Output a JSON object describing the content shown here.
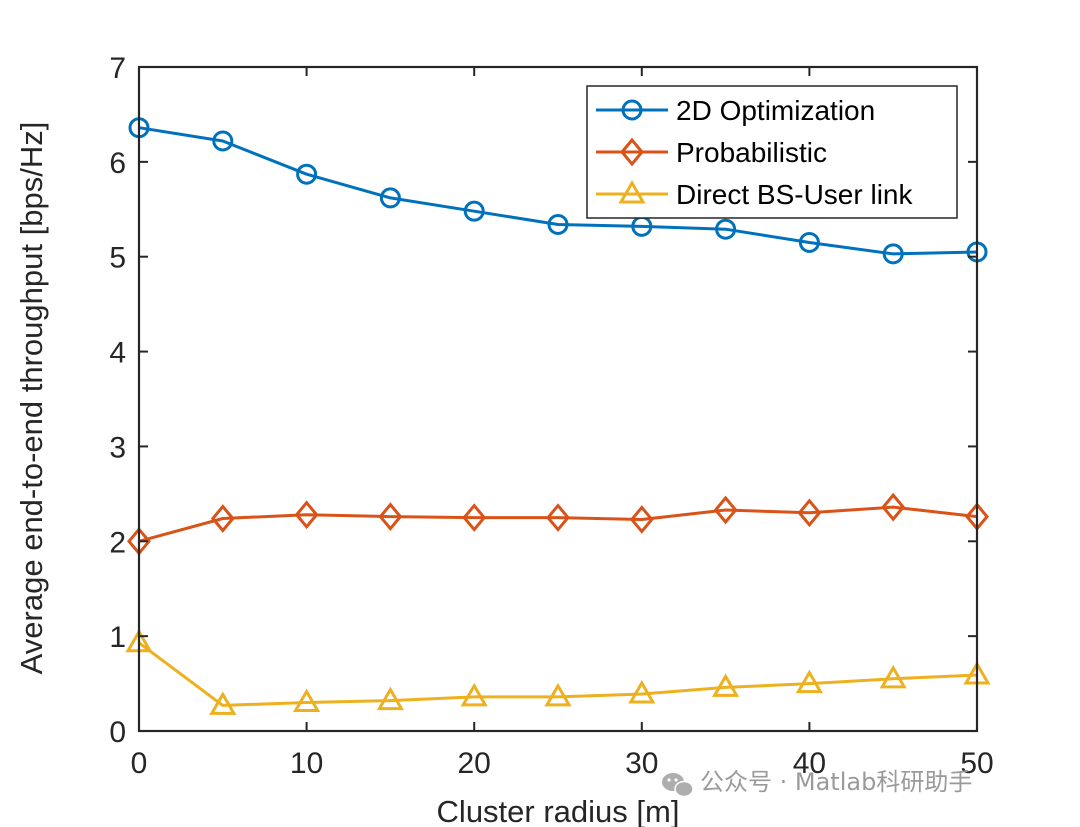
{
  "chart_data": {
    "type": "line",
    "title": "",
    "xlabel": "Cluster radius [m]",
    "ylabel": "Average end-to-end throughput [bps/Hz]",
    "xlim": [
      0,
      50
    ],
    "ylim": [
      0,
      7
    ],
    "xticks": [
      0,
      10,
      20,
      30,
      40,
      50
    ],
    "yticks": [
      0,
      1,
      2,
      3,
      4,
      5,
      6,
      7
    ],
    "grid": false,
    "legend_position": "top-right",
    "x": [
      0,
      5,
      10,
      15,
      20,
      25,
      30,
      35,
      40,
      45,
      50
    ],
    "series": [
      {
        "name": "2D Optimization",
        "marker": "circle",
        "color": "#0072BD",
        "values": [
          6.36,
          6.22,
          5.87,
          5.62,
          5.48,
          5.34,
          5.32,
          5.29,
          5.15,
          5.03,
          5.05
        ]
      },
      {
        "name": "Probabilistic",
        "marker": "diamond",
        "color": "#D95319",
        "values": [
          2.0,
          2.24,
          2.28,
          2.26,
          2.25,
          2.25,
          2.23,
          2.33,
          2.3,
          2.36,
          2.26
        ]
      },
      {
        "name": "Direct BS-User link",
        "marker": "triangle",
        "color": "#EDB120",
        "values": [
          0.93,
          0.27,
          0.3,
          0.32,
          0.36,
          0.36,
          0.39,
          0.46,
          0.5,
          0.55,
          0.59
        ]
      }
    ]
  },
  "watermark": {
    "icon": "wechat-icon",
    "text": "公众号 · Matlab科研助手"
  }
}
